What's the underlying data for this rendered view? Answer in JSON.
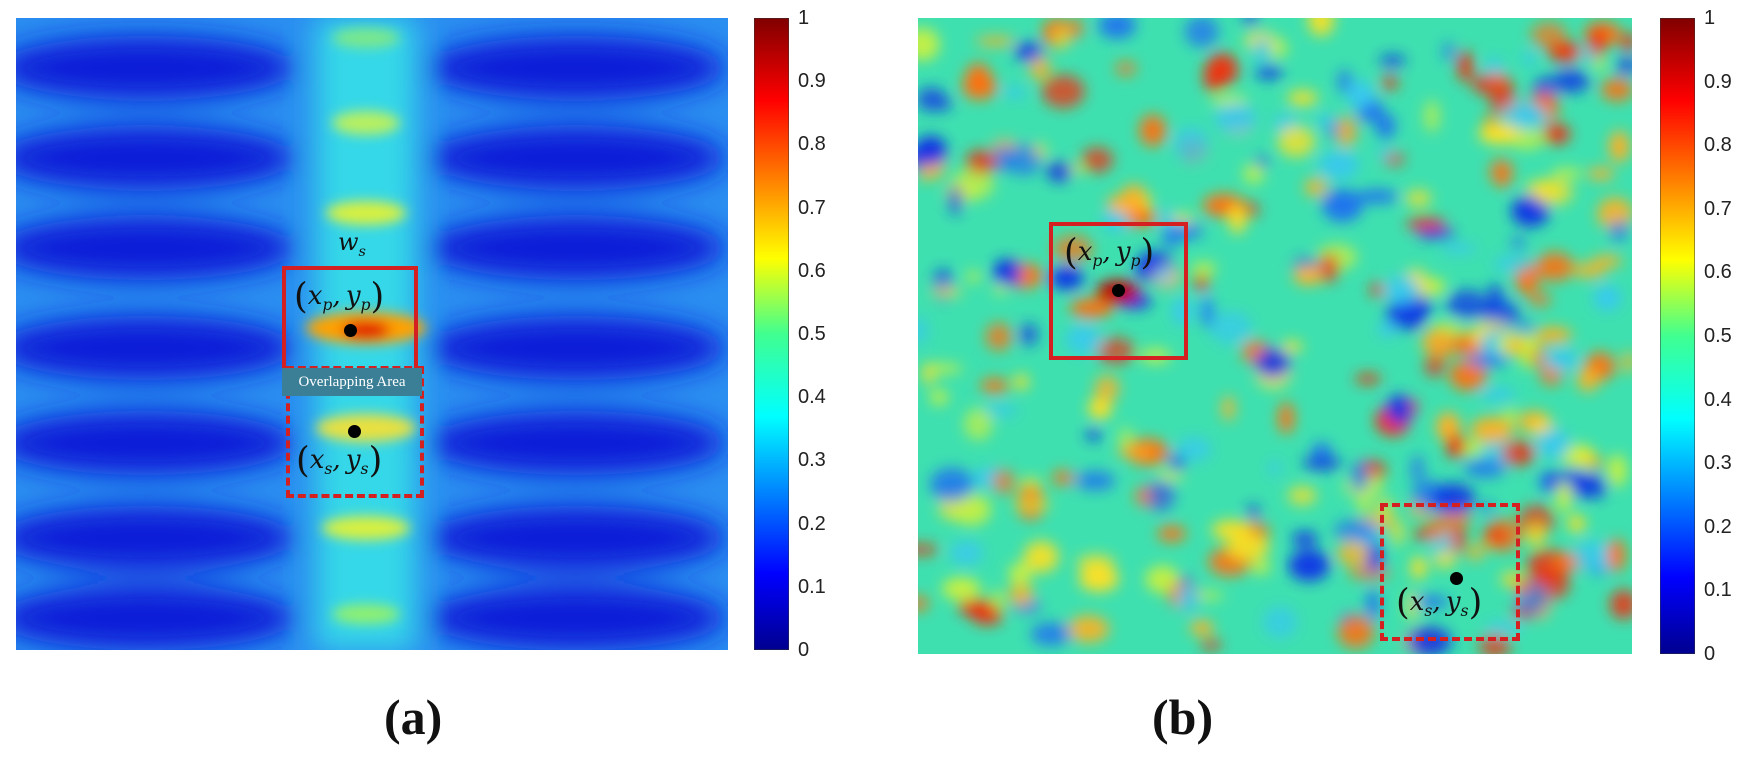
{
  "chart_data": [
    {
      "type": "heatmap",
      "panel_label": "(a)",
      "colormap": "jet",
      "colorbar": {
        "min": 0,
        "max": 1,
        "ticks": [
          "0",
          "0.1",
          "0.2",
          "0.3",
          "0.4",
          "0.5",
          "0.6",
          "0.7",
          "0.8",
          "0.9",
          "1"
        ]
      },
      "annotations": {
        "window_label": "w",
        "window_sub": "s",
        "primary_point_label": {
          "x": "x",
          "x_sub": "p",
          "y": "y",
          "y_sub": "p"
        },
        "secondary_point_label": {
          "x": "x",
          "x_sub": "s",
          "y": "y",
          "y_sub": "s"
        },
        "overlap_label": "Overlapping Area"
      }
    },
    {
      "type": "heatmap",
      "panel_label": "(b)",
      "colormap": "jet",
      "colorbar": {
        "min": 0,
        "max": 1,
        "ticks": [
          "0",
          "0.1",
          "0.2",
          "0.3",
          "0.4",
          "0.5",
          "0.6",
          "0.7",
          "0.8",
          "0.9",
          "1"
        ]
      },
      "annotations": {
        "primary_point_label": {
          "x": "x",
          "x_sub": "p",
          "y": "y",
          "y_sub": "p"
        },
        "secondary_point_label": {
          "x": "x",
          "x_sub": "s",
          "y": "y",
          "y_sub": "s"
        }
      }
    }
  ],
  "colors": {
    "box": "#d42020",
    "jet": [
      "#00008f",
      "#0000ff",
      "#0080ff",
      "#00ffff",
      "#80ff80",
      "#ffff00",
      "#ff8000",
      "#ff0000",
      "#800000"
    ]
  }
}
